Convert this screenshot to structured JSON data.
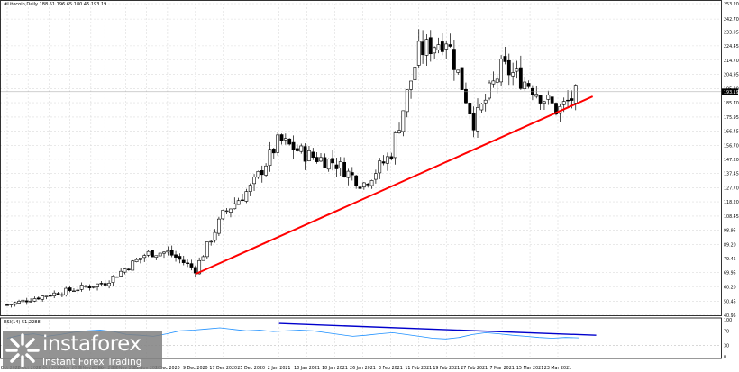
{
  "header": {
    "title": "#Litecoin,Daily  188.51 196.65 180.45 193.19"
  },
  "rsi_panel": {
    "label": "RSI(14) 51.2288",
    "levels": [
      70,
      30
    ],
    "level_labels": [
      "100",
      "70",
      "30",
      "0"
    ]
  },
  "logo": {
    "name": "instaforex",
    "tagline": "Instant Forex Trading"
  },
  "colors": {
    "support_line": "#ff0000",
    "divergence_line": "#0000cc",
    "rsi_line": "#1e90ff",
    "candle_up": "#ffffff",
    "candle_down": "#000000"
  },
  "chart_data": {
    "type": "candlestick",
    "symbol": "#Litecoin",
    "timeframe": "Daily",
    "ohlc_header": {
      "open": 188.51,
      "high": 196.65,
      "low": 180.45,
      "close": 193.19
    },
    "current_price": 193.19,
    "price_ticks": [
      253.2,
      242.7,
      233.95,
      224.45,
      214.7,
      204.95,
      195.2,
      185.7,
      175.95,
      166.45,
      156.7,
      147.2,
      137.45,
      127.7,
      118.2,
      108.45,
      98.95,
      89.2,
      79.45,
      69.95,
      60.2,
      50.45,
      40.95
    ],
    "ylim": [
      40.95,
      253.2
    ],
    "date_ticks": [
      "16 Oct 2020",
      "22 Oct 2020",
      "28 Oct 2020",
      "3 Nov 2020",
      "9 Nov 2020",
      "13 Nov 2020",
      "19 Nov 2020",
      "25 Nov 2020",
      "1 Dec 2020",
      "9 Dec 2020",
      "17 Dec 2020",
      "25 Dec 2020",
      "2 Jan 2021",
      "10 Jan 2021",
      "18 Jan 2021",
      "26 Jan 2021",
      "3 Feb 2021",
      "11 Feb 2021",
      "19 Feb 2021",
      "27 Feb 2021",
      "7 Mar 2021",
      "15 Mar 2021",
      "23 Mar 2021"
    ],
    "close_path": [
      {
        "date": "16 Oct 2020",
        "price": 48
      },
      {
        "date": "28 Oct 2020",
        "price": 55
      },
      {
        "date": "13 Nov 2020",
        "price": 63
      },
      {
        "date": "25 Nov 2020",
        "price": 83
      },
      {
        "date": "1 Dec 2020",
        "price": 84
      },
      {
        "date": "9 Dec 2020",
        "price": 72
      },
      {
        "date": "17 Dec 2020",
        "price": 110
      },
      {
        "date": "25 Dec 2020",
        "price": 128
      },
      {
        "date": "2 Jan 2021",
        "price": 160
      },
      {
        "date": "10 Jan 2021",
        "price": 150
      },
      {
        "date": "18 Jan 2021",
        "price": 145
      },
      {
        "date": "26 Jan 2021",
        "price": 130
      },
      {
        "date": "3 Feb 2021",
        "price": 150
      },
      {
        "date": "11 Feb 2021",
        "price": 220
      },
      {
        "date": "19 Feb 2021",
        "price": 230
      },
      {
        "date": "27 Feb 2021",
        "price": 172
      },
      {
        "date": "7 Mar 2021",
        "price": 210
      },
      {
        "date": "15 Mar 2021",
        "price": 198
      },
      {
        "date": "23 Mar 2021",
        "price": 180
      },
      {
        "date": "29 Mar 2021",
        "price": 193
      }
    ],
    "trendlines": [
      {
        "name": "support",
        "color": "#ff0000",
        "from": {
          "date": "9 Dec 2020",
          "price": 69
        },
        "to": {
          "date": "2 Apr 2021",
          "price": 190
        }
      },
      {
        "name": "rsi-bearish-divergence",
        "panel": "rsi",
        "color": "#0000cc",
        "from": {
          "date": "2 Jan 2021",
          "rsi": 90
        },
        "to": {
          "date": "3 Apr 2021",
          "rsi": 58
        }
      }
    ],
    "rsi": {
      "period": 14,
      "last": 51.2288,
      "ylim": [
        0,
        100
      ],
      "levels": [
        30,
        70
      ],
      "values": [
        50,
        58,
        62,
        55,
        60,
        66,
        70,
        72,
        68,
        60,
        58,
        55,
        62,
        70,
        72,
        75,
        78,
        74,
        70,
        72,
        68,
        70,
        72,
        70,
        65,
        60,
        55,
        58,
        62,
        65,
        60,
        55,
        50,
        48,
        52,
        60,
        65,
        62,
        58,
        55,
        52,
        50,
        52,
        51
      ]
    }
  }
}
